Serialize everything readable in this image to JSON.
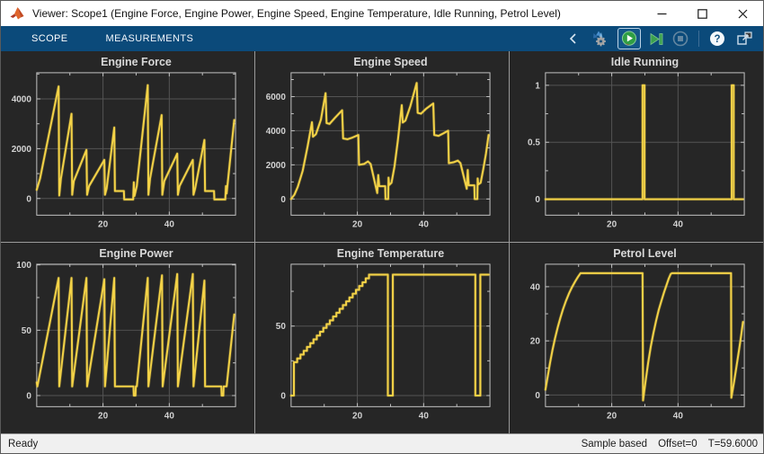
{
  "window": {
    "title": "Viewer: Scope1 (Engine Force, Engine Power, Engine Speed, Engine Temperature, Idle Running, Petrol Level)"
  },
  "toolbar": {
    "tabs": [
      {
        "label": "SCOPE"
      },
      {
        "label": "MEASUREMENTS"
      }
    ],
    "icons": [
      "chevron-left",
      "simulation-settings",
      "run",
      "step-forward",
      "stop",
      "help",
      "popout"
    ]
  },
  "status": {
    "left": "Ready",
    "mode": "Sample based",
    "offset": "Offset=0",
    "time": "T=59.6000"
  },
  "colors": {
    "line": "#f3d247",
    "plot_bg": "#262626",
    "grid": "#545454",
    "frame": "#c3c3c3",
    "tick_label": "#d2d2d2",
    "toolstrip": "#0b4a7a"
  },
  "chart_data": [
    {
      "type": "line",
      "title": "Engine Force",
      "xlim": [
        0,
        60
      ],
      "ylim": [
        -670,
        5050
      ],
      "xticks": [
        {
          "v": 20,
          "label": "20"
        },
        {
          "v": 40,
          "label": "40"
        }
      ],
      "xminor": [
        10,
        30,
        50
      ],
      "yticks": [
        {
          "v": 0,
          "label": "0"
        },
        {
          "v": 2000,
          "label": "2000"
        },
        {
          "v": 4000,
          "label": "4000"
        }
      ],
      "yminor": [
        1000,
        3000,
        5000
      ],
      "mode": "line",
      "points": [
        [
          0,
          350
        ],
        [
          1,
          800
        ],
        [
          6.6,
          4500
        ],
        [
          6.8,
          120
        ],
        [
          7.3,
          800
        ],
        [
          10.5,
          3400
        ],
        [
          10.7,
          150
        ],
        [
          11.2,
          700
        ],
        [
          15,
          1950
        ],
        [
          15.2,
          150
        ],
        [
          15.8,
          500
        ],
        [
          20.4,
          1550
        ],
        [
          20.6,
          150
        ],
        [
          21.1,
          400
        ],
        [
          23.4,
          2850
        ],
        [
          23.6,
          300
        ],
        [
          26.3,
          300
        ],
        [
          26.4,
          -40
        ],
        [
          29.1,
          -40
        ],
        [
          29.3,
          650
        ],
        [
          29.5,
          100
        ],
        [
          30.2,
          500
        ],
        [
          33.5,
          4550
        ],
        [
          33.7,
          150
        ],
        [
          34.2,
          800
        ],
        [
          37.7,
          3350
        ],
        [
          37.9,
          150
        ],
        [
          38.5,
          700
        ],
        [
          42.4,
          1800
        ],
        [
          42.6,
          150
        ],
        [
          43.1,
          500
        ],
        [
          47.1,
          1550
        ],
        [
          47.3,
          150
        ],
        [
          47.8,
          400
        ],
        [
          50.6,
          2350
        ],
        [
          50.8,
          300
        ],
        [
          53.5,
          300
        ],
        [
          53.6,
          -40
        ],
        [
          56.9,
          -40
        ],
        [
          57.1,
          500
        ],
        [
          57.3,
          200
        ],
        [
          59.6,
          3150
        ]
      ]
    },
    {
      "type": "line",
      "title": "Engine Speed",
      "xlim": [
        0,
        60
      ],
      "ylim": [
        -950,
        7400
      ],
      "xticks": [
        {
          "v": 20,
          "label": "20"
        },
        {
          "v": 40,
          "label": "40"
        }
      ],
      "xminor": [
        10,
        30,
        50
      ],
      "yticks": [
        {
          "v": 0,
          "label": "0"
        },
        {
          "v": 2000,
          "label": "2000"
        },
        {
          "v": 4000,
          "label": "4000"
        },
        {
          "v": 6000,
          "label": "6000"
        }
      ],
      "yminor": [
        1000,
        3000,
        5000,
        7000
      ],
      "mode": "line",
      "points": [
        [
          0,
          0
        ],
        [
          1,
          250
        ],
        [
          2,
          700
        ],
        [
          3.5,
          1650
        ],
        [
          5,
          3100
        ],
        [
          6.3,
          4500
        ],
        [
          6.6,
          3650
        ],
        [
          7.5,
          3800
        ],
        [
          9,
          4650
        ],
        [
          10.4,
          6200
        ],
        [
          10.7,
          4450
        ],
        [
          11.6,
          4400
        ],
        [
          13.2,
          4750
        ],
        [
          15.4,
          5200
        ],
        [
          15.7,
          3550
        ],
        [
          17,
          3500
        ],
        [
          18.5,
          3600
        ],
        [
          20.3,
          3750
        ],
        [
          20.5,
          2000
        ],
        [
          22,
          2050
        ],
        [
          23.2,
          2200
        ],
        [
          24,
          2050
        ],
        [
          26,
          350
        ],
        [
          26.3,
          1400
        ],
        [
          26.6,
          750
        ],
        [
          28.4,
          750
        ],
        [
          28.5,
          0
        ],
        [
          29.3,
          0
        ],
        [
          29.4,
          1250
        ],
        [
          29.6,
          820
        ],
        [
          30.3,
          950
        ],
        [
          31.2,
          1900
        ],
        [
          32.2,
          3400
        ],
        [
          33.4,
          5500
        ],
        [
          33.7,
          4480
        ],
        [
          34.5,
          4600
        ],
        [
          36,
          5450
        ],
        [
          37.9,
          6800
        ],
        [
          38.2,
          5050
        ],
        [
          39.2,
          5000
        ],
        [
          40.8,
          5300
        ],
        [
          42.9,
          5600
        ],
        [
          43.2,
          3750
        ],
        [
          44.5,
          3700
        ],
        [
          46,
          3850
        ],
        [
          47.4,
          4000
        ],
        [
          47.6,
          2100
        ],
        [
          49,
          2150
        ],
        [
          50.3,
          2250
        ],
        [
          51.1,
          2100
        ],
        [
          53,
          600
        ],
        [
          53.3,
          1700
        ],
        [
          53.6,
          800
        ],
        [
          55.3,
          800
        ],
        [
          55.4,
          0
        ],
        [
          56.2,
          0
        ],
        [
          56.3,
          1200
        ],
        [
          56.5,
          850
        ],
        [
          57.2,
          950
        ],
        [
          58,
          1750
        ],
        [
          58.8,
          2650
        ],
        [
          59.6,
          3750
        ]
      ]
    },
    {
      "type": "line",
      "title": "Idle Running",
      "xlim": [
        0,
        60
      ],
      "ylim": [
        -0.14,
        1.11
      ],
      "xticks": [
        {
          "v": 20,
          "label": "20"
        },
        {
          "v": 40,
          "label": "40"
        }
      ],
      "xminor": [
        10,
        30,
        50
      ],
      "yticks": [
        {
          "v": 0,
          "label": "0"
        },
        {
          "v": 0.5,
          "label": "0.5"
        },
        {
          "v": 1,
          "label": "1"
        }
      ],
      "yminor": [
        0.25,
        0.75
      ],
      "mode": "line",
      "points": [
        [
          0,
          0
        ],
        [
          29.3,
          0
        ],
        [
          29.3,
          1
        ],
        [
          29.9,
          1
        ],
        [
          29.9,
          0
        ],
        [
          56.2,
          0
        ],
        [
          56.2,
          1
        ],
        [
          56.8,
          1
        ],
        [
          56.8,
          0
        ],
        [
          59.6,
          0
        ]
      ]
    },
    {
      "type": "line",
      "title": "Engine Power",
      "xlim": [
        0,
        60
      ],
      "ylim": [
        -8.5,
        100.5
      ],
      "xticks": [
        {
          "v": 20,
          "label": "20"
        },
        {
          "v": 40,
          "label": "40"
        }
      ],
      "xminor": [
        10,
        30,
        50
      ],
      "yticks": [
        {
          "v": 0,
          "label": "0"
        },
        {
          "v": 50,
          "label": "50"
        },
        {
          "v": 100,
          "label": "100"
        }
      ],
      "yminor": [
        25,
        75
      ],
      "mode": "line",
      "points": [
        [
          0,
          10
        ],
        [
          0.2,
          7
        ],
        [
          6.6,
          90
        ],
        [
          6.8,
          7
        ],
        [
          10.5,
          90
        ],
        [
          10.7,
          7
        ],
        [
          15,
          90
        ],
        [
          15.2,
          7
        ],
        [
          20.4,
          89
        ],
        [
          20.6,
          7
        ],
        [
          23.4,
          90
        ],
        [
          23.6,
          7
        ],
        [
          29.2,
          7
        ],
        [
          29.3,
          0
        ],
        [
          29.8,
          0
        ],
        [
          29.9,
          7
        ],
        [
          30.2,
          7
        ],
        [
          33.5,
          90
        ],
        [
          33.7,
          7
        ],
        [
          37.8,
          92
        ],
        [
          38,
          7
        ],
        [
          42.4,
          93
        ],
        [
          42.6,
          7
        ],
        [
          47.1,
          93
        ],
        [
          47.3,
          7
        ],
        [
          50.6,
          88
        ],
        [
          50.8,
          7
        ],
        [
          55.7,
          7
        ],
        [
          55.8,
          0
        ],
        [
          56.3,
          0
        ],
        [
          56.4,
          7
        ],
        [
          57.3,
          7
        ],
        [
          59.6,
          62
        ]
      ]
    },
    {
      "type": "line",
      "title": "Engine Temperature",
      "xlim": [
        0,
        60
      ],
      "ylim": [
        -8,
        94.5
      ],
      "xticks": [
        {
          "v": 20,
          "label": "20"
        },
        {
          "v": 40,
          "label": "40"
        }
      ],
      "xminor": [
        10,
        30,
        50
      ],
      "yticks": [
        {
          "v": 0,
          "label": "0"
        },
        {
          "v": 50,
          "label": "50"
        }
      ],
      "yminor": [
        25,
        75
      ],
      "mode": "stair",
      "points": [
        [
          0,
          0
        ],
        [
          0.85,
          24
        ],
        [
          1.84,
          26.7
        ],
        [
          2.82,
          29.5
        ],
        [
          3.81,
          32.2
        ],
        [
          4.79,
          35
        ],
        [
          5.78,
          37.7
        ],
        [
          6.76,
          40.4
        ],
        [
          7.75,
          43.2
        ],
        [
          8.73,
          45.9
        ],
        [
          9.72,
          48.7
        ],
        [
          10.7,
          51.4
        ],
        [
          11.69,
          54.1
        ],
        [
          12.67,
          56.9
        ],
        [
          13.66,
          59.6
        ],
        [
          14.64,
          62.4
        ],
        [
          15.63,
          65.1
        ],
        [
          16.61,
          67.8
        ],
        [
          17.6,
          70.6
        ],
        [
          18.58,
          73.3
        ],
        [
          19.57,
          76.1
        ],
        [
          20.55,
          78.8
        ],
        [
          21.54,
          81.5
        ],
        [
          22.52,
          84.3
        ],
        [
          23.51,
          87
        ],
        [
          29.2,
          0
        ],
        [
          30.7,
          87
        ],
        [
          55.6,
          0
        ],
        [
          57.1,
          87
        ],
        [
          59.6,
          87
        ]
      ]
    },
    {
      "type": "line",
      "title": "Petrol Level",
      "xlim": [
        0,
        60
      ],
      "ylim": [
        -4.3,
        48.3
      ],
      "xticks": [
        {
          "v": 20,
          "label": "20"
        },
        {
          "v": 40,
          "label": "40"
        }
      ],
      "xminor": [
        10,
        30,
        50
      ],
      "yticks": [
        {
          "v": 0,
          "label": "0"
        },
        {
          "v": 20,
          "label": "20"
        },
        {
          "v": 40,
          "label": "40"
        }
      ],
      "yminor": [
        10,
        30
      ],
      "mode": "line",
      "points": [
        [
          0,
          2
        ],
        [
          0.7,
          7
        ],
        [
          1.4,
          12
        ],
        [
          2.1,
          16.5
        ],
        [
          2.9,
          21
        ],
        [
          3.7,
          25
        ],
        [
          4.5,
          28.5
        ],
        [
          5.3,
          31.7
        ],
        [
          6.2,
          34.8
        ],
        [
          7.1,
          37.5
        ],
        [
          8,
          39.8
        ],
        [
          9,
          42
        ],
        [
          9.8,
          43.6
        ],
        [
          10.6,
          45
        ],
        [
          29.3,
          45
        ],
        [
          29.45,
          -2
        ],
        [
          30.2,
          5
        ],
        [
          31,
          12
        ],
        [
          31.8,
          18
        ],
        [
          32.6,
          23
        ],
        [
          33.4,
          27.5
        ],
        [
          34.2,
          31.5
        ],
        [
          35,
          34.8
        ],
        [
          35.8,
          38
        ],
        [
          36.5,
          40.5
        ],
        [
          37.2,
          43
        ],
        [
          37.8,
          44.7
        ],
        [
          38.2,
          45
        ],
        [
          56,
          45
        ],
        [
          56.1,
          -1
        ],
        [
          57,
          5.5
        ],
        [
          57.7,
          11
        ],
        [
          58.4,
          16.5
        ],
        [
          59,
          21.5
        ],
        [
          59.6,
          27
        ]
      ]
    }
  ]
}
